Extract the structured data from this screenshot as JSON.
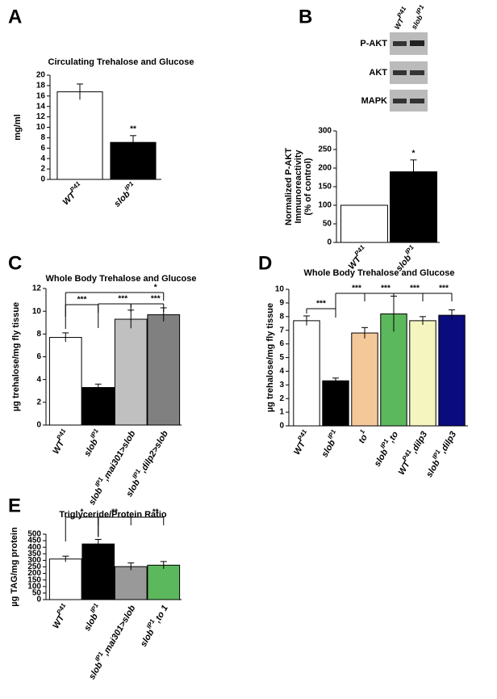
{
  "chart_data": [
    {
      "type": "bar",
      "panel": "A",
      "title": "Circulating Trehalose and Glucose",
      "ylabel": [
        "mg/ml"
      ],
      "categories": [
        {
          "base": "WT",
          "sup": "P41"
        },
        {
          "base": "slob",
          "sup": "IP1"
        }
      ],
      "values": [
        16.8,
        7.1
      ],
      "errors": [
        1.5,
        1.3
      ],
      "colors": [
        "#ffffff",
        "#000000"
      ],
      "ylim": [
        0,
        20
      ],
      "yticks": [
        0,
        2,
        4,
        6,
        8,
        10,
        12,
        14,
        16,
        18,
        20
      ],
      "annotations": [
        "**"
      ]
    },
    {
      "type": "bar",
      "panel": "B",
      "ylabel": [
        "Normalized P-AKT",
        "Immunoreactivity",
        "(% of control)"
      ],
      "blot_rows": [
        "P-AKT",
        "AKT",
        "MAPK"
      ],
      "categories": [
        {
          "base": "WT",
          "sup": "P41"
        },
        {
          "base": "slob",
          "sup": "IP1"
        }
      ],
      "values": [
        100,
        190
      ],
      "errors": [
        0,
        32
      ],
      "colors": [
        "#ffffff",
        "#000000"
      ],
      "ylim": [
        0,
        300
      ],
      "yticks": [
        0,
        50,
        100,
        150,
        200,
        250,
        300
      ],
      "annotations": [
        "*"
      ]
    },
    {
      "type": "bar",
      "panel": "C",
      "title": "Whole Body Trehalose and Glucose",
      "ylabel": [
        "µg trehalose/mg fly tissue"
      ],
      "categories": [
        {
          "base": "WT",
          "sup": "P41"
        },
        {
          "base": "slob",
          "sup": "IP1"
        },
        {
          "base": "slob",
          "sup": "IP1",
          "tail": ",mai301>slob"
        },
        {
          "base": "slob",
          "sup": "IP1",
          "tail": ",dilp2>slob"
        }
      ],
      "values": [
        7.7,
        3.3,
        9.3,
        9.7
      ],
      "errors": [
        0.4,
        0.3,
        0.8,
        0.6
      ],
      "colors": [
        "#ffffff",
        "#000000",
        "#c0c0c0",
        "#808080"
      ],
      "ylim": [
        0,
        12
      ],
      "yticks": [
        0,
        2,
        4,
        6,
        8,
        10,
        12
      ],
      "annotations": [
        "***",
        "***",
        "***",
        "*"
      ]
    },
    {
      "type": "bar",
      "panel": "D",
      "title": "Whole Body Trehalose and Glucose",
      "ylabel": [
        "µg trehalose/mg fly tissue"
      ],
      "categories": [
        {
          "base": "WT",
          "sup": "P41"
        },
        {
          "base": "slob",
          "sup": "IP1"
        },
        {
          "base": "to",
          "sup": "1"
        },
        {
          "base": "slob",
          "sup": "IP1",
          "tail": ",to"
        },
        {
          "base": "WT",
          "sup": "P41",
          "tail": ",dilp3"
        },
        {
          "base": "slob",
          "sup": "IP1",
          "tail": ",dilp3"
        }
      ],
      "values": [
        7.7,
        3.3,
        6.8,
        8.2,
        7.7,
        8.1
      ],
      "errors": [
        0.35,
        0.2,
        0.4,
        1.3,
        0.3,
        0.4
      ],
      "colors": [
        "#ffffff",
        "#000000",
        "#f5c89a",
        "#5cb85c",
        "#f5f5c0",
        "#0b0b80"
      ],
      "ylim": [
        0,
        10
      ],
      "yticks": [
        0,
        1,
        2,
        3,
        4,
        5,
        6,
        7,
        8,
        9,
        10
      ],
      "annotations": [
        "***",
        "***",
        "***",
        "***",
        "***"
      ]
    },
    {
      "type": "bar",
      "panel": "E",
      "title": "Triglyceride/Protein Ratio",
      "ylabel": [
        "µg TAG/mg protein"
      ],
      "categories": [
        {
          "base": "WT",
          "sup": "P41"
        },
        {
          "base": "slob",
          "sup": "IP1"
        },
        {
          "base": "slob",
          "sup": "IP1",
          "tail": ",mai301>slob"
        },
        {
          "base": "slob",
          "sup": "IP1",
          "tail": ",to 1"
        }
      ],
      "values": [
        310,
        425,
        252,
        263
      ],
      "errors": [
        22,
        35,
        28,
        28
      ],
      "colors": [
        "#ffffff",
        "#000000",
        "#999999",
        "#5cb85c"
      ],
      "ylim": [
        0,
        500
      ],
      "yticks": [
        0,
        50,
        100,
        150,
        200,
        250,
        300,
        350,
        400,
        450,
        500
      ],
      "annotations": [
        "*",
        "**",
        "**"
      ]
    }
  ]
}
